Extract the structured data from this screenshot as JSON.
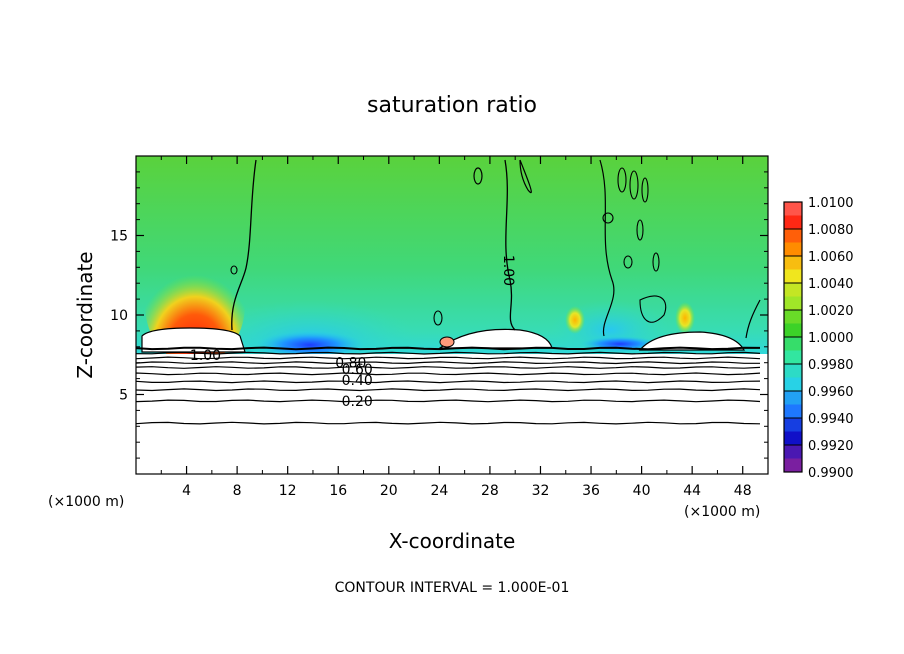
{
  "chart_data": {
    "type": "heatmap",
    "title": "saturation ratio",
    "xlabel": "X-coordinate",
    "ylabel": "Z-coordinate",
    "x_unit_left": "(×1000 m)",
    "x_unit_right": "(×1000 m)",
    "footer": "CONTOUR INTERVAL = 1.000E-01",
    "xlim": [
      0,
      50
    ],
    "ylim": [
      0,
      20
    ],
    "x_ticks": [
      4,
      8,
      12,
      16,
      20,
      24,
      28,
      32,
      36,
      40,
      44,
      48
    ],
    "x_tick_labels": [
      "4",
      "8",
      "12",
      "16",
      "20",
      "24",
      "28",
      "32",
      "36",
      "40",
      "44",
      "48"
    ],
    "y_ticks": [
      5,
      10,
      15
    ],
    "y_tick_labels": [
      "5",
      "10",
      "15"
    ],
    "colorbar": {
      "levels": [
        0.99,
        0.992,
        0.994,
        0.996,
        0.998,
        1.0,
        1.002,
        1.004,
        1.006,
        1.008,
        1.01
      ],
      "labels": [
        "0.9900",
        "0.9920",
        "0.9940",
        "0.9960",
        "0.9980",
        "1.0000",
        "1.0020",
        "1.0040",
        "1.0060",
        "1.0080",
        "1.0100"
      ],
      "colors": [
        "#7a1fa0",
        "#1010c8",
        "#1e78ff",
        "#28d2e6",
        "#32e6a0",
        "#3cd228",
        "#a0e628",
        "#f0e61e",
        "#ff8c00",
        "#ff2814",
        "#ff8c8c"
      ]
    },
    "contour_labels": [
      {
        "text": "1.00",
        "x": 5.5,
        "y": 7.5
      },
      {
        "text": "0.80",
        "x": 17.0,
        "y": 7.0
      },
      {
        "text": "0.60",
        "x": 17.5,
        "y": 6.6
      },
      {
        "text": "0.40",
        "x": 17.5,
        "y": 5.9
      },
      {
        "text": "0.20",
        "x": 17.5,
        "y": 4.6
      },
      {
        "text": "1.00",
        "x": 29.5,
        "y": 12.8
      }
    ],
    "contour_lines_y": [
      7.9,
      7.6,
      7.3,
      7.0,
      6.7,
      6.3,
      5.8,
      5.3,
      4.6,
      3.2
    ]
  }
}
